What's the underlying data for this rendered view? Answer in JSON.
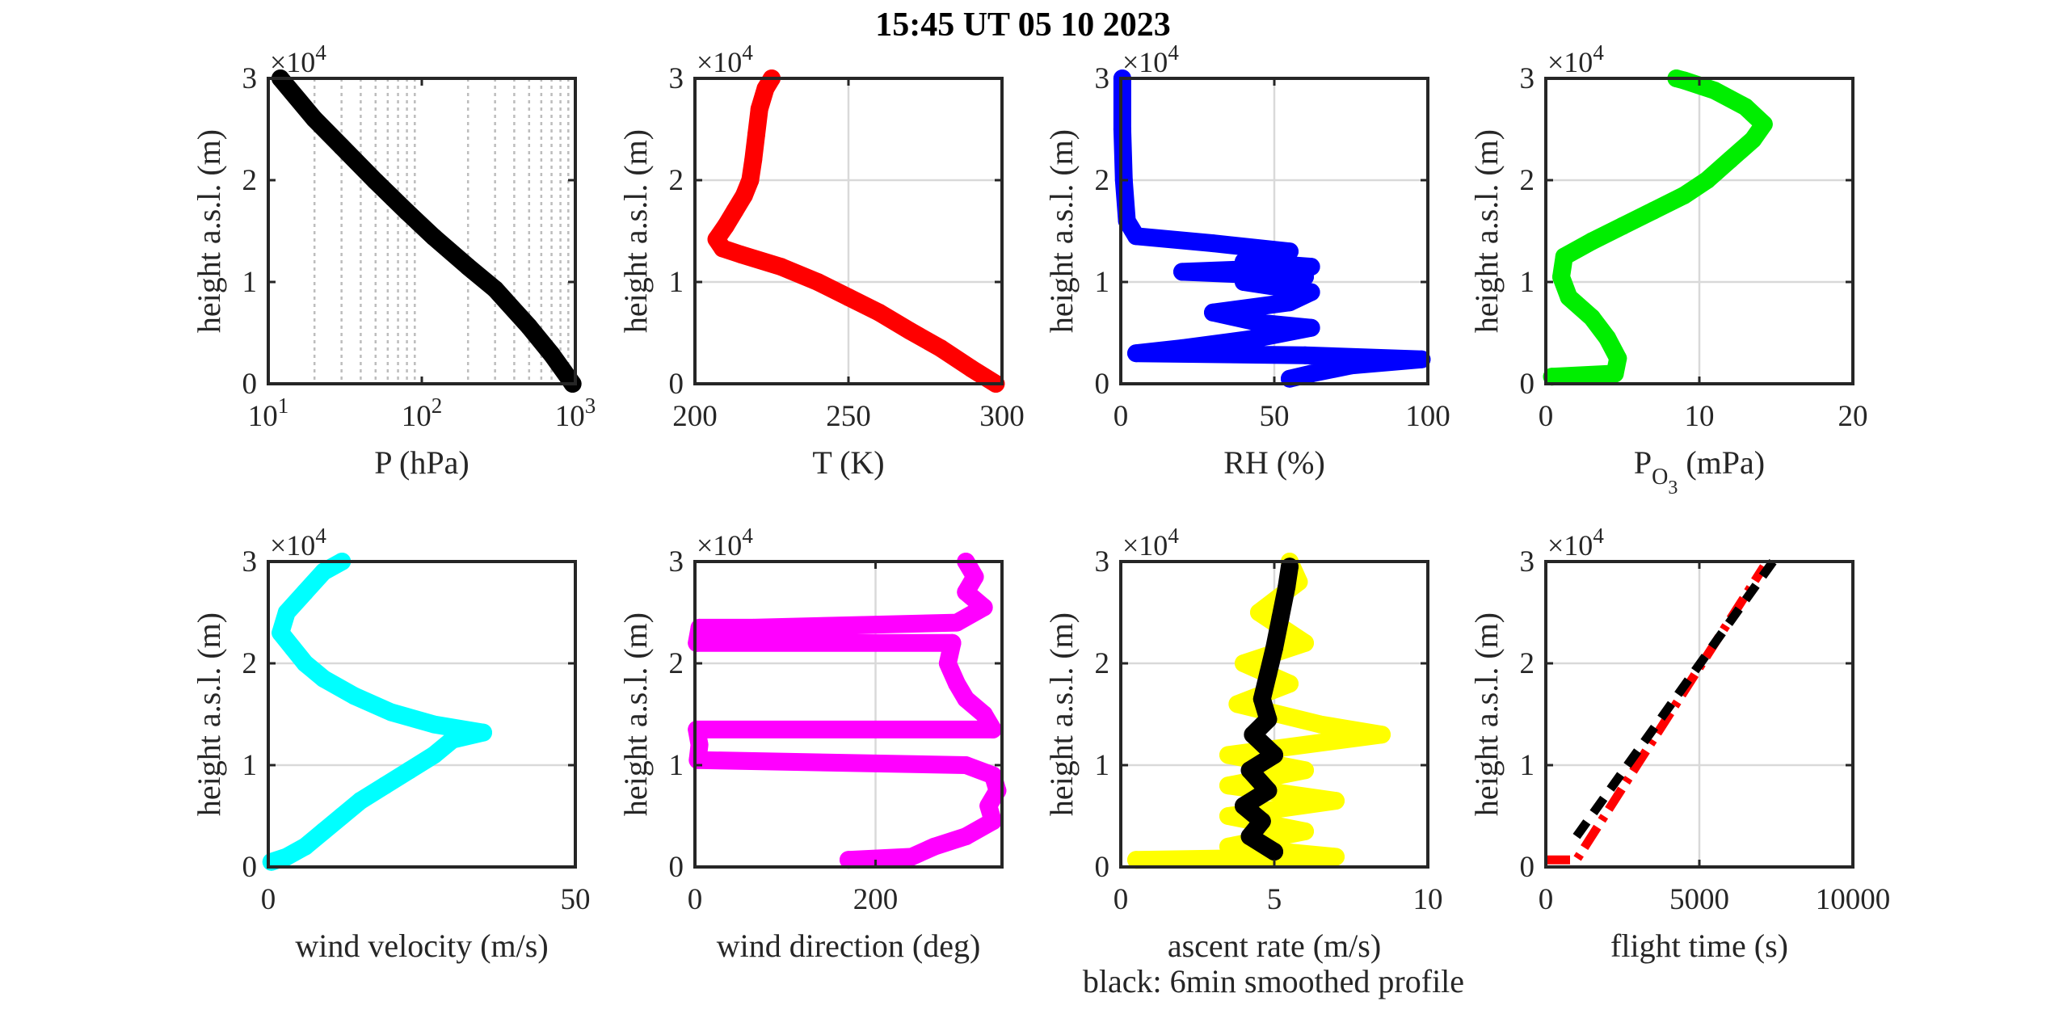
{
  "figure": {
    "title": "15:45 UT  05 10 2023",
    "note": "black: 6min smoothed profile",
    "ylabel": "height a.s.l. (m)",
    "yexponent": "×10",
    "yexponent_power": "4"
  },
  "chart_data": [
    {
      "type": "scatter",
      "xlabel": "P (hPa)",
      "ylabel": "height a.s.l. (m)",
      "xscale": "log",
      "xlim": [
        10,
        1000
      ],
      "ylim": [
        0,
        3
      ],
      "xticks": [
        10,
        100,
        1000
      ],
      "xtick_labels": [
        [
          "10",
          "1"
        ],
        [
          "10",
          "2"
        ],
        [
          "10",
          "3"
        ]
      ],
      "yticks": [
        0,
        1,
        2,
        3
      ],
      "ytick_labels": [
        "0",
        "1",
        "2",
        "3"
      ],
      "grid": "log-minor-dotted",
      "series": [
        {
          "color": "#000000",
          "points": [
            [
              12,
              3.0
            ],
            [
              20,
              2.6
            ],
            [
              30,
              2.33
            ],
            [
              50,
              1.99
            ],
            [
              80,
              1.69
            ],
            [
              120,
              1.44
            ],
            [
              200,
              1.15
            ],
            [
              300,
              0.93
            ],
            [
              500,
              0.56
            ],
            [
              700,
              0.29
            ],
            [
              900,
              0.06
            ],
            [
              960,
              0.0
            ]
          ]
        }
      ]
    },
    {
      "type": "scatter",
      "xlabel": "T (K)",
      "ylabel": "height a.s.l. (m)",
      "xlim": [
        200,
        300
      ],
      "ylim": [
        0,
        3
      ],
      "xticks": [
        200,
        250,
        300
      ],
      "yticks": [
        0,
        1,
        2,
        3
      ],
      "ytick_labels": [
        "0",
        "1",
        "2",
        "3"
      ],
      "grid": "major",
      "series": [
        {
          "color": "#ff0000",
          "points": [
            [
              298,
              0.0
            ],
            [
              290,
              0.15
            ],
            [
              280,
              0.35
            ],
            [
              270,
              0.52
            ],
            [
              260,
              0.7
            ],
            [
              250,
              0.85
            ],
            [
              240,
              1.0
            ],
            [
              228,
              1.15
            ],
            [
              215,
              1.27
            ],
            [
              209,
              1.33
            ],
            [
              207,
              1.42
            ],
            [
              210,
              1.55
            ],
            [
              213,
              1.7
            ],
            [
              216,
              1.85
            ],
            [
              218,
              2.0
            ],
            [
              219,
              2.2
            ],
            [
              220,
              2.45
            ],
            [
              221,
              2.7
            ],
            [
              223,
              2.9
            ],
            [
              225,
              3.0
            ]
          ]
        }
      ]
    },
    {
      "type": "scatter",
      "xlabel": "RH (%)",
      "ylabel": "height a.s.l. (m)",
      "xlim": [
        0,
        100
      ],
      "ylim": [
        0,
        3
      ],
      "xticks": [
        0,
        50,
        100
      ],
      "yticks": [
        0,
        1,
        2,
        3
      ],
      "ytick_labels": [
        "0",
        "1",
        "2",
        "3"
      ],
      "grid": "major",
      "series": [
        {
          "color": "#0000ff",
          "points": [
            [
              55,
              0.05
            ],
            [
              62,
              0.1
            ],
            [
              75,
              0.18
            ],
            [
              98,
              0.24
            ],
            [
              60,
              0.28
            ],
            [
              5,
              0.3
            ],
            [
              20,
              0.35
            ],
            [
              45,
              0.45
            ],
            [
              62,
              0.55
            ],
            [
              45,
              0.6
            ],
            [
              30,
              0.7
            ],
            [
              55,
              0.8
            ],
            [
              62,
              0.9
            ],
            [
              40,
              1.0
            ],
            [
              60,
              1.05
            ],
            [
              20,
              1.1
            ],
            [
              62,
              1.15
            ],
            [
              40,
              1.2
            ],
            [
              55,
              1.3
            ],
            [
              30,
              1.38
            ],
            [
              5,
              1.45
            ],
            [
              2,
              1.6
            ],
            [
              1,
              2.0
            ],
            [
              0.5,
              2.5
            ],
            [
              0.5,
              3.0
            ]
          ]
        }
      ]
    },
    {
      "type": "scatter",
      "xlabel": "P",
      "xlabel_sub": "O",
      "xlabel_subsub": "3",
      "xlabel_unit": "(mPa)",
      "ylabel": "height a.s.l. (m)",
      "xlim": [
        0,
        20
      ],
      "ylim": [
        0,
        3
      ],
      "xticks": [
        0,
        10,
        20
      ],
      "yticks": [
        0,
        1,
        2,
        3
      ],
      "ytick_labels": [
        "0",
        "1",
        "2",
        "3"
      ],
      "grid": "major",
      "series": [
        {
          "color": "#00ee00",
          "points": [
            [
              0.4,
              0.07
            ],
            [
              4.5,
              0.1
            ],
            [
              4.7,
              0.25
            ],
            [
              4.0,
              0.45
            ],
            [
              3.0,
              0.65
            ],
            [
              1.5,
              0.85
            ],
            [
              1.0,
              1.05
            ],
            [
              1.2,
              1.25
            ],
            [
              3.0,
              1.4
            ],
            [
              5.0,
              1.55
            ],
            [
              7.0,
              1.7
            ],
            [
              9.0,
              1.85
            ],
            [
              10.5,
              2.0
            ],
            [
              12.0,
              2.2
            ],
            [
              13.5,
              2.4
            ],
            [
              14.2,
              2.55
            ],
            [
              13.0,
              2.72
            ],
            [
              11.0,
              2.88
            ],
            [
              9.0,
              2.98
            ],
            [
              8.5,
              3.0
            ]
          ]
        }
      ]
    },
    {
      "type": "scatter",
      "xlabel": "wind velocity (m/s)",
      "ylabel": "height a.s.l. (m)",
      "xlim": [
        0,
        50
      ],
      "ylim": [
        0,
        3
      ],
      "xticks": [
        0,
        50
      ],
      "yticks": [
        0,
        1,
        2,
        3
      ],
      "ytick_labels": [
        "0",
        "1",
        "2",
        "3"
      ],
      "grid": "major",
      "series": [
        {
          "color": "#00ffff",
          "points": [
            [
              0.5,
              0.05
            ],
            [
              3,
              0.1
            ],
            [
              6,
              0.2
            ],
            [
              9,
              0.35
            ],
            [
              12,
              0.5
            ],
            [
              15,
              0.65
            ],
            [
              19,
              0.8
            ],
            [
              23,
              0.95
            ],
            [
              27,
              1.1
            ],
            [
              30,
              1.25
            ],
            [
              35,
              1.32
            ],
            [
              27,
              1.4
            ],
            [
              20,
              1.52
            ],
            [
              14,
              1.68
            ],
            [
              9,
              1.85
            ],
            [
              6,
              2.0
            ],
            [
              4,
              2.15
            ],
            [
              2,
              2.3
            ],
            [
              3,
              2.5
            ],
            [
              6,
              2.7
            ],
            [
              9,
              2.9
            ],
            [
              12,
              3.0
            ]
          ]
        }
      ]
    },
    {
      "type": "scatter",
      "xlabel": "wind direction (deg)",
      "ylabel": "height a.s.l. (m)",
      "xlim": [
        0,
        340
      ],
      "ylim": [
        0,
        3
      ],
      "xticks": [
        0,
        200
      ],
      "yticks": [
        0,
        1,
        2,
        3
      ],
      "ytick_labels": [
        "0",
        "1",
        "2",
        "3"
      ],
      "grid": "major",
      "series": [
        {
          "color": "#ff00ff",
          "points": [
            [
              170,
              0.07
            ],
            [
              240,
              0.1
            ],
            [
              265,
              0.2
            ],
            [
              300,
              0.3
            ],
            [
              330,
              0.45
            ],
            [
              325,
              0.6
            ],
            [
              335,
              0.75
            ],
            [
              330,
              0.9
            ],
            [
              300,
              1.0
            ],
            [
              3,
              1.05
            ],
            [
              5,
              1.2
            ],
            [
              2,
              1.35
            ],
            [
              330,
              1.35
            ],
            [
              320,
              1.5
            ],
            [
              300,
              1.65
            ],
            [
              290,
              1.8
            ],
            [
              280,
              2.0
            ],
            [
              285,
              2.2
            ],
            [
              2,
              2.2
            ],
            [
              5,
              2.35
            ],
            [
              65,
              2.35
            ],
            [
              290,
              2.4
            ],
            [
              320,
              2.55
            ],
            [
              300,
              2.7
            ],
            [
              310,
              2.85
            ],
            [
              300,
              3.0
            ]
          ]
        }
      ]
    },
    {
      "type": "scatter",
      "xlabel": "ascent rate (m/s)",
      "ylabel": "height a.s.l. (m)",
      "xlim": [
        0,
        10
      ],
      "ylim": [
        0,
        3
      ],
      "xticks": [
        0,
        5,
        10
      ],
      "yticks": [
        0,
        1,
        2,
        3
      ],
      "ytick_labels": [
        "0",
        "1",
        "2",
        "3"
      ],
      "grid": "major",
      "series": [
        {
          "color": "#ffff00",
          "points": [
            [
              0.5,
              0.07
            ],
            [
              7,
              0.1
            ],
            [
              3.5,
              0.2
            ],
            [
              6,
              0.35
            ],
            [
              3.5,
              0.5
            ],
            [
              7,
              0.65
            ],
            [
              3.5,
              0.8
            ],
            [
              6,
              0.95
            ],
            [
              3.5,
              1.1
            ],
            [
              8.5,
              1.3
            ],
            [
              6.5,
              1.4
            ],
            [
              3.8,
              1.6
            ],
            [
              5.5,
              1.8
            ],
            [
              4,
              2.0
            ],
            [
              6,
              2.2
            ],
            [
              4.5,
              2.5
            ],
            [
              5.8,
              2.8
            ],
            [
              5.5,
              3.0
            ]
          ]
        },
        {
          "color": "#000000",
          "points": [
            [
              5,
              0.15
            ],
            [
              4.2,
              0.3
            ],
            [
              4.6,
              0.45
            ],
            [
              4.0,
              0.6
            ],
            [
              4.8,
              0.75
            ],
            [
              4.2,
              0.95
            ],
            [
              5.0,
              1.1
            ],
            [
              4.3,
              1.3
            ],
            [
              4.8,
              1.45
            ],
            [
              4.6,
              1.65
            ],
            [
              4.8,
              1.9
            ],
            [
              5.0,
              2.15
            ],
            [
              5.2,
              2.45
            ],
            [
              5.4,
              2.75
            ],
            [
              5.5,
              2.95
            ]
          ]
        }
      ]
    },
    {
      "type": "line",
      "xlabel": "flight time (s)",
      "ylabel": "height a.s.l. (m)",
      "xlim": [
        0,
        10000
      ],
      "ylim": [
        0,
        3
      ],
      "xticks": [
        0,
        5000,
        10000
      ],
      "yticks": [
        0,
        1,
        2,
        3
      ],
      "ytick_labels": [
        "0",
        "1",
        "2",
        "3"
      ],
      "grid": "major",
      "series": [
        {
          "color": "#ff0000",
          "style": "dashdot",
          "points": [
            [
              0,
              0.07
            ],
            [
              1000,
              0.07
            ],
            [
              7100,
              2.95
            ]
          ]
        },
        {
          "color": "#000000",
          "style": "dashed",
          "points": [
            [
              1000,
              0.3
            ],
            [
              7400,
              3.0
            ]
          ]
        }
      ]
    }
  ]
}
